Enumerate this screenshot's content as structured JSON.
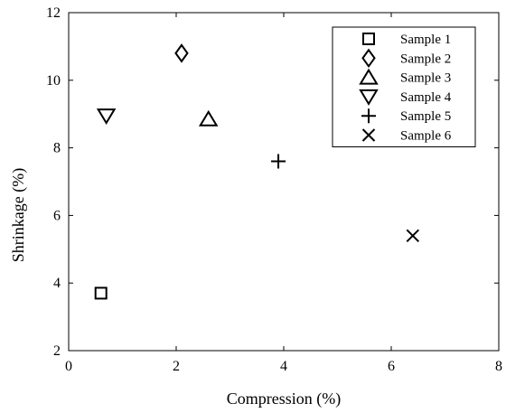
{
  "chart_data": {
    "type": "scatter",
    "title": "",
    "xlabel": "Compression (%)",
    "ylabel": "Shrinkage (%)",
    "xlim": [
      0,
      8
    ],
    "ylim": [
      2,
      12
    ],
    "xticks": [
      0,
      2,
      4,
      6,
      8
    ],
    "yticks": [
      2,
      4,
      6,
      8,
      10,
      12
    ],
    "grid": false,
    "legend_position": "top-right",
    "series": [
      {
        "name": "Sample 1",
        "marker": "square",
        "x": [
          0.6
        ],
        "y": [
          3.7
        ]
      },
      {
        "name": "Sample 2",
        "marker": "diamond",
        "x": [
          2.1
        ],
        "y": [
          10.8
        ]
      },
      {
        "name": "Sample 3",
        "marker": "triangle-up",
        "x": [
          2.6
        ],
        "y": [
          8.85
        ]
      },
      {
        "name": "Sample 4",
        "marker": "triangle-down",
        "x": [
          0.7
        ],
        "y": [
          8.95
        ]
      },
      {
        "name": "Sample 5",
        "marker": "plus",
        "x": [
          3.9
        ],
        "y": [
          7.6
        ]
      },
      {
        "name": "Sample 6",
        "marker": "x",
        "x": [
          6.4
        ],
        "y": [
          5.4
        ]
      }
    ]
  }
}
